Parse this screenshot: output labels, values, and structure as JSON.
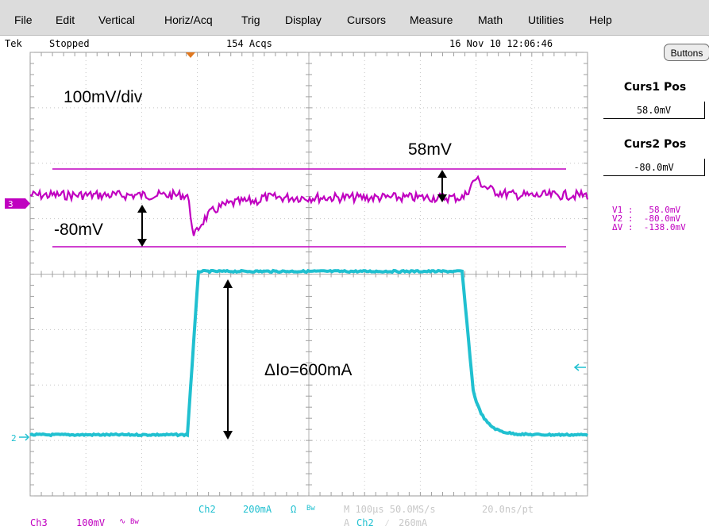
{
  "menu": [
    "File",
    "Edit",
    "Vertical",
    "Horiz/Acq",
    "Trig",
    "Display",
    "Cursors",
    "Measure",
    "Math",
    "Utilities",
    "Help"
  ],
  "status": {
    "brand": "Tek",
    "state": "Stopped",
    "acqs": "154 Acqs",
    "datetime": "16 Nov 10 12:06:46"
  },
  "right_panel": {
    "buttons_label": "Buttons",
    "curs1_label": "Curs1 Pos",
    "curs1_value": "58.0mV",
    "curs2_label": "Curs2 Pos",
    "curs2_value": "-80.0mV",
    "v1": "V1 :   58.0mV",
    "v2": "V2 :  -80.0mV",
    "dv": "ΔV :  -138.0mV"
  },
  "annotations": {
    "scale": "100mV/div",
    "over": "58mV",
    "under": "-80mV",
    "current": "ΔIo=600mA"
  },
  "channel_markers": {
    "ch3": "3",
    "ch2": "2"
  },
  "bottom": {
    "ch3_name": "Ch3",
    "ch3_scale": "100mV",
    "ch3_bw": "Bw",
    "ch2_name": "Ch2",
    "ch2_scale": "200mA",
    "ch2_ohm": "Ω",
    "ch2_bw": "Bw",
    "horiz": "M 100µs 50.0MS/s",
    "pt": "20.0ns/pt",
    "trig_src_a": "A",
    "trig_ch": "Ch2",
    "trig_level": "260mA"
  },
  "colors": {
    "ch3": "#c000c0",
    "ch2": "#20c0d0",
    "trigger": "#e07820"
  }
}
